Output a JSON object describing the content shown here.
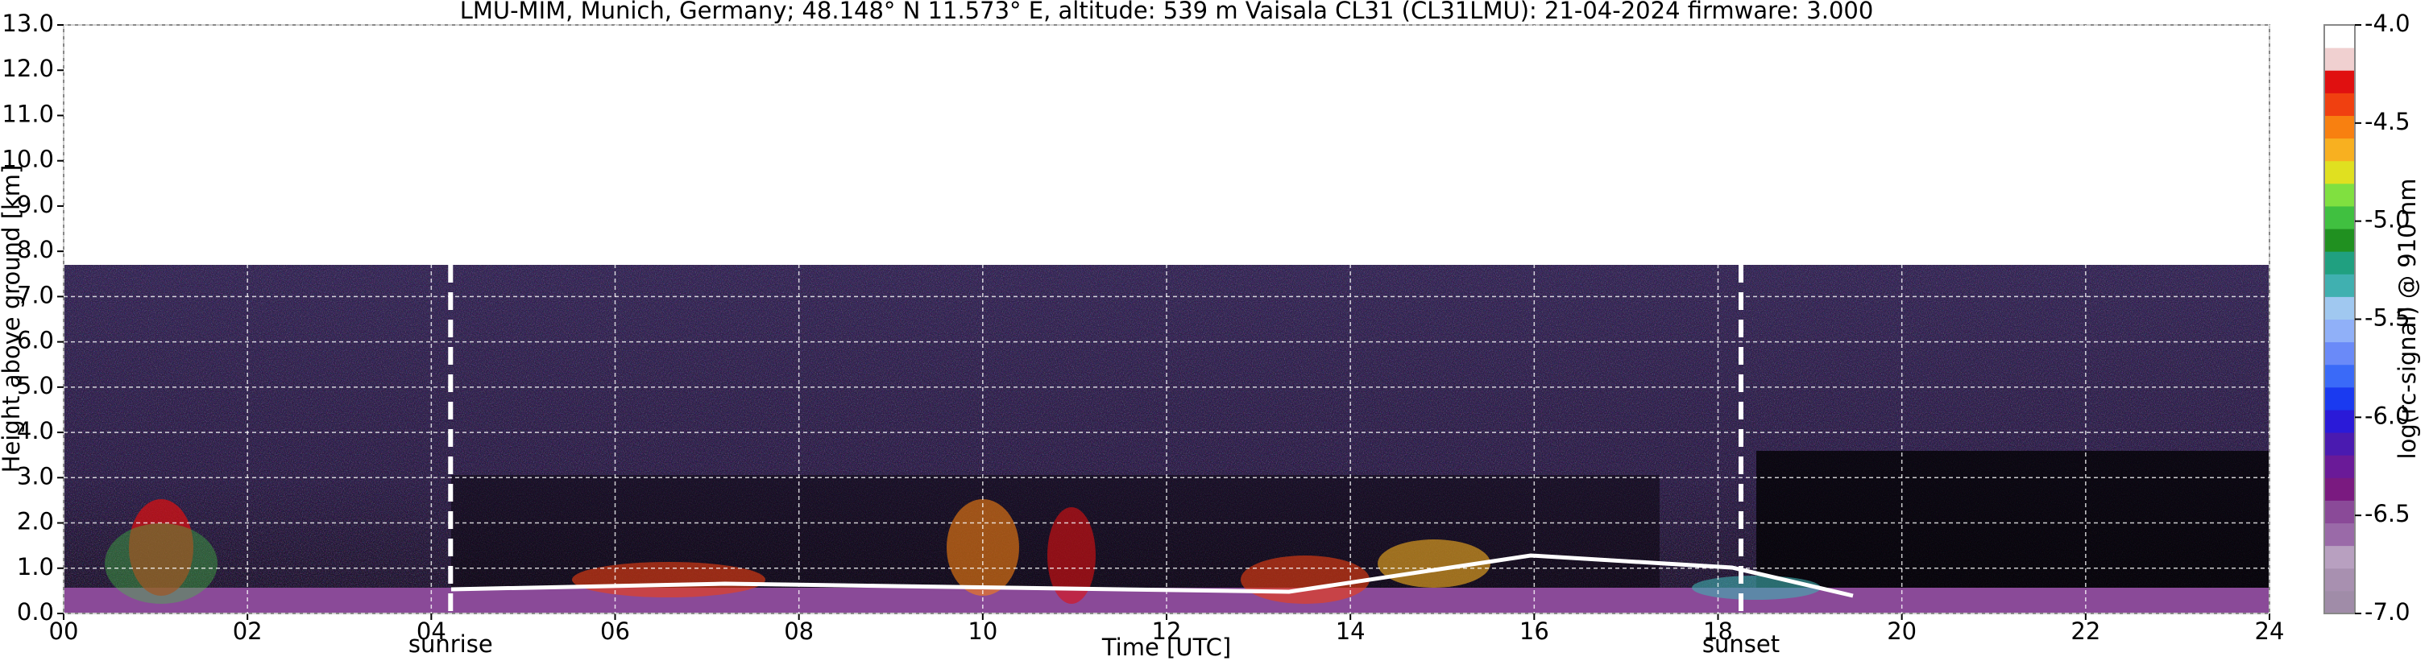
{
  "chart_data": {
    "type": "heatmap",
    "title": "LMU-MIM, Munich, Germany; 48.148° N 11.573° E, altitude: 539 m    Vaisala CL31 (CL31LMU): 21-04-2024    firmware: 3.000",
    "x_label": "Time [UTC]",
    "y_label": "Height above ground [km]",
    "xlim": [
      0,
      24
    ],
    "xticks": [
      {
        "value": 0,
        "label": "00"
      },
      {
        "value": 2,
        "label": "02"
      },
      {
        "value": 4,
        "label": "04"
      },
      {
        "value": 6,
        "label": "06"
      },
      {
        "value": 8,
        "label": "08"
      },
      10,
      12,
      14,
      16,
      18,
      20,
      22,
      24
    ],
    "ylim": [
      0,
      13
    ],
    "yticks": [
      {
        "value": 0,
        "label": "0.0"
      },
      {
        "value": 1,
        "label": "1.0"
      },
      {
        "value": 2,
        "label": "2.0"
      },
      {
        "value": 3,
        "label": "3.0"
      },
      {
        "value": 4,
        "label": "4.0"
      },
      {
        "value": 5,
        "label": "5.0"
      },
      {
        "value": 6,
        "label": "6.0"
      },
      {
        "value": 7,
        "label": "7.0"
      },
      {
        "value": 8,
        "label": "8.0"
      },
      {
        "value": 9,
        "label": "9.0"
      },
      {
        "value": 10,
        "label": "10.0"
      },
      {
        "value": 11,
        "label": "11.0"
      },
      {
        "value": 12,
        "label": "12.0"
      },
      {
        "value": 13,
        "label": "13.0"
      }
    ],
    "grid": true,
    "annotations": [
      {
        "text": "sunrise",
        "x": 4.21
      },
      {
        "text": "sunset",
        "x": 18.25
      }
    ],
    "colorbar": {
      "label": "log(rc-signal) @ 910 nm",
      "lim": [
        -7,
        -4
      ],
      "ticks": [
        {
          "value": -4,
          "label": "-4.0"
        },
        -4.5,
        {
          "value": -5,
          "label": "-5.0"
        },
        -5.5,
        {
          "value": -6,
          "label": "-6.0"
        },
        -6.5,
        {
          "value": -7,
          "label": "-7.0"
        }
      ],
      "colors": [
        "#a08ca8",
        "#a890b0",
        "#b8a0c0",
        "#9a6aa8",
        "#8a4a98",
        "#7a1a80",
        "#6a1a98",
        "#4a1ab0",
        "#2a1ad8",
        "#1a3af0",
        "#3a6af8",
        "#6a8af8",
        "#90b0f8",
        "#a0c8f0",
        "#40b0b0",
        "#20a080",
        "#209020",
        "#40c040",
        "#80e040",
        "#e0e020",
        "#f8b020",
        "#f88010",
        "#f04010",
        "#e01010",
        "#f0d0d0",
        "#ffffff"
      ]
    }
  }
}
